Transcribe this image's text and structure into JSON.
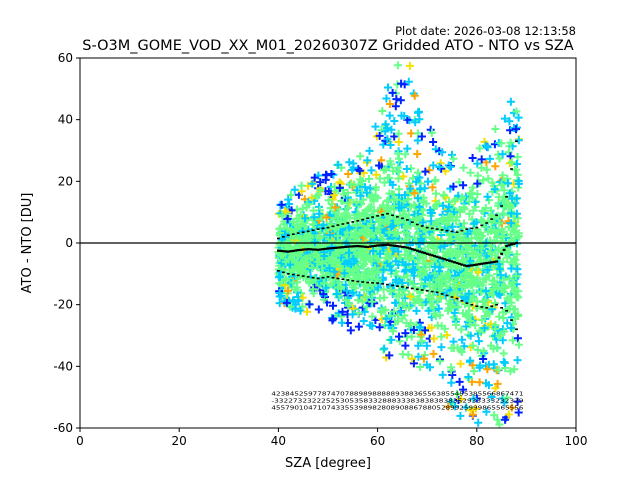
{
  "chart_data": {
    "type": "scatter",
    "title": "S-O3M_GOME_VOD_XX_M01_20260307Z Gridded ATO - NTO vs SZA",
    "plot_date": "Plot date: 2026-03-08 12:13:58",
    "xlabel": "SZA [degree]",
    "ylabel": "ATO - NTO [DU]",
    "xlim": [
      0,
      100
    ],
    "ylim": [
      -60,
      60
    ],
    "xticks": [
      0,
      20,
      40,
      60,
      80,
      100
    ],
    "yticks": [
      -60,
      -40,
      -20,
      0,
      20,
      40,
      60
    ],
    "reference_line_y": 0,
    "colors": {
      "dense_core": "#66ff88",
      "cyan": "#00ccff",
      "yellow": "#f5e000",
      "orange": "#ffa500",
      "blue": "#0022ff",
      "median_line": "#000000",
      "axis": "#000000"
    },
    "series": [
      {
        "name": "median",
        "x": [
          40,
          42,
          44,
          46,
          48,
          50,
          52,
          54,
          56,
          58,
          60,
          62,
          64,
          66,
          68,
          70,
          72,
          74,
          76,
          78,
          80,
          82,
          84,
          86,
          88
        ],
        "y": [
          -2.5,
          -2.8,
          -2.3,
          -2.0,
          -2.2,
          -1.8,
          -1.5,
          -1.2,
          -1.0,
          -1.3,
          -0.8,
          -0.6,
          -1.0,
          -1.5,
          -2.5,
          -3.5,
          -4.5,
          -5.5,
          -6.5,
          -7.5,
          -7.0,
          -6.5,
          -6.0,
          -1.0,
          0.0
        ]
      },
      {
        "name": "upper percentile",
        "x": [
          40,
          42,
          44,
          46,
          48,
          50,
          52,
          54,
          56,
          58,
          60,
          62,
          64,
          66,
          68,
          70,
          72,
          74,
          76,
          78,
          80,
          82,
          84,
          86,
          88
        ],
        "y": [
          1.5,
          2.5,
          3.2,
          3.8,
          4.5,
          5.0,
          5.8,
          6.5,
          7.2,
          8.0,
          8.8,
          9.5,
          8.5,
          7.5,
          6.0,
          5.0,
          4.5,
          4.0,
          3.5,
          4.5,
          5.0,
          6.5,
          9.0,
          15.0,
          33.0
        ]
      },
      {
        "name": "lower percentile",
        "x": [
          40,
          42,
          44,
          46,
          48,
          50,
          52,
          54,
          56,
          58,
          60,
          62,
          64,
          66,
          68,
          70,
          72,
          74,
          76,
          78,
          80,
          82,
          84,
          86,
          88
        ],
        "y": [
          -9.0,
          -10.0,
          -10.5,
          -11.0,
          -11.5,
          -11.0,
          -11.5,
          -12.0,
          -12.5,
          -12.8,
          -13.0,
          -13.5,
          -14.0,
          -14.5,
          -15.0,
          -15.5,
          -16.0,
          -17.0,
          -18.0,
          -19.5,
          -20.5,
          -21.0,
          -20.0,
          -22.0,
          -28.0
        ]
      }
    ],
    "scatter_envelope": {
      "x": [
        40,
        44,
        48,
        52,
        56,
        60,
        62,
        64,
        66,
        68,
        70,
        72,
        76,
        80,
        84,
        88
      ],
      "upper": [
        15,
        18,
        22,
        26,
        30,
        40,
        52,
        58,
        60,
        55,
        42,
        34,
        28,
        30,
        40,
        55
      ],
      "lower": [
        -20,
        -22,
        -23,
        -26,
        -30,
        -33,
        -38,
        -36,
        -38,
        -44,
        -42,
        -50,
        -58,
        -60,
        -60,
        -55
      ]
    },
    "annotations": [
      {
        "text": "4238452597787470788989888889388365563855455385566867471",
        "x": 64,
        "y": -49.5
      },
      {
        "text": "-33227323222525305358332888333838383838352933333232329",
        "x": 64,
        "y": -51.8
      },
      {
        "text": "4557901047107433553989828089088678805289925999865565556",
        "x": 64,
        "y": -54.0
      }
    ]
  }
}
